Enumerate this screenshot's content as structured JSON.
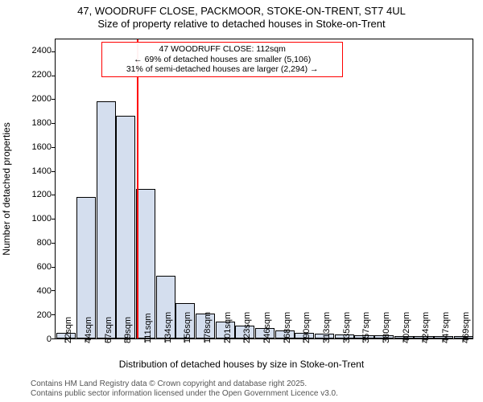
{
  "title": {
    "line1": "47, WOODRUFF CLOSE, PACKMOOR, STOKE-ON-TRENT, ST7 4UL",
    "line2": "Size of property relative to detached houses in Stoke-on-Trent",
    "fontsize": 13
  },
  "chart": {
    "type": "histogram",
    "ylabel": "Number of detached properties",
    "xlabel": "Distribution of detached houses by size in Stoke-on-Trent",
    "label_fontsize": 12,
    "tick_fontsize": 11,
    "ylim": [
      0,
      2500
    ],
    "yticks": [
      0,
      200,
      400,
      600,
      800,
      1000,
      1200,
      1400,
      1600,
      1800,
      2000,
      2200,
      2400
    ],
    "background_color": "#ffffff",
    "border_color": "#000000",
    "bar_fill": "#d4deee",
    "bar_stroke": "#000000",
    "bar_width": 0.9,
    "marker": {
      "color": "#ff0000",
      "x_index": 4,
      "position_within_bin": 0.1
    },
    "annotation": {
      "border_color": "#ff0000",
      "line1": "47 WOODRUFF CLOSE: 112sqm",
      "line2": "← 69% of detached houses are smaller (5,106)",
      "line3": "31% of semi-detached houses are larger (2,294) →",
      "fontsize": 10.5
    },
    "bins": [
      {
        "label": "22sqm",
        "value": 35
      },
      {
        "label": "44sqm",
        "value": 1170
      },
      {
        "label": "67sqm",
        "value": 1970
      },
      {
        "label": "89sqm",
        "value": 1850
      },
      {
        "label": "111sqm",
        "value": 1240
      },
      {
        "label": "134sqm",
        "value": 510
      },
      {
        "label": "156sqm",
        "value": 280
      },
      {
        "label": "178sqm",
        "value": 195
      },
      {
        "label": "201sqm",
        "value": 130
      },
      {
        "label": "223sqm",
        "value": 95
      },
      {
        "label": "246sqm",
        "value": 75
      },
      {
        "label": "268sqm",
        "value": 55
      },
      {
        "label": "290sqm",
        "value": 35
      },
      {
        "label": "313sqm",
        "value": 30
      },
      {
        "label": "335sqm",
        "value": 18
      },
      {
        "label": "357sqm",
        "value": 12
      },
      {
        "label": "380sqm",
        "value": 15
      },
      {
        "label": "402sqm",
        "value": 8
      },
      {
        "label": "424sqm",
        "value": 5
      },
      {
        "label": "447sqm",
        "value": 8
      },
      {
        "label": "469sqm",
        "value": 6
      }
    ]
  },
  "footer": {
    "line1": "Contains HM Land Registry data © Crown copyright and database right 2025.",
    "line2": "Contains public sector information licensed under the Open Government Licence v3.0.",
    "color": "#555555",
    "fontsize": 10
  }
}
